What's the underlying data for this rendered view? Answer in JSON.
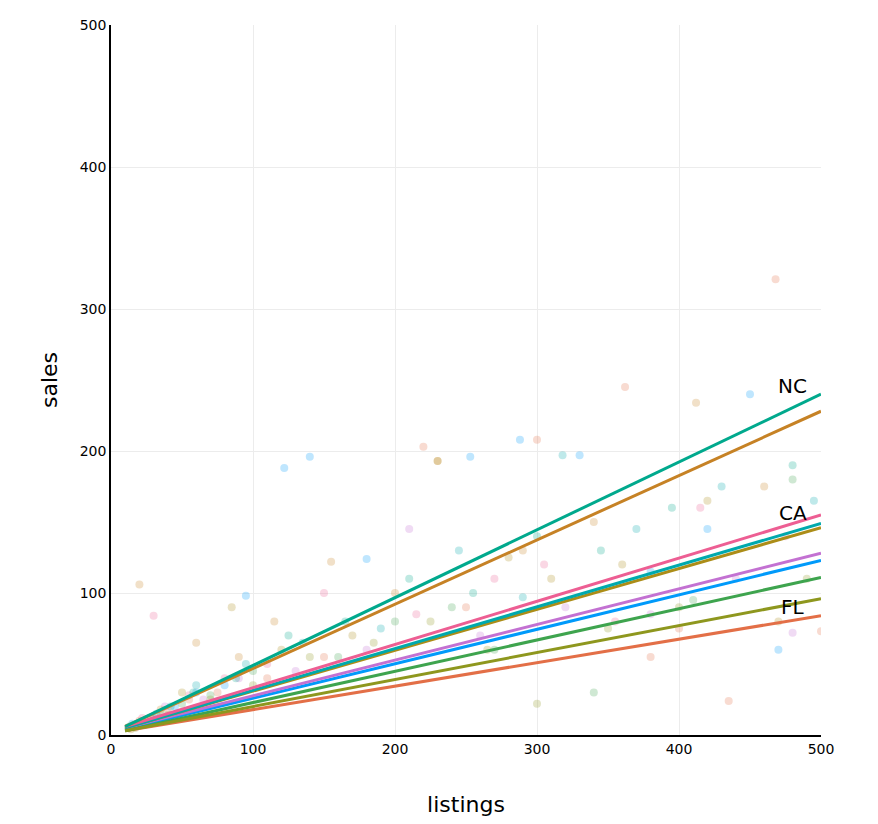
{
  "chart_data": {
    "type": "scatter",
    "xlabel": "listings",
    "ylabel": "sales",
    "xlim": [
      0,
      500
    ],
    "ylim": [
      0,
      500
    ],
    "xticks": [
      0,
      100,
      200,
      300,
      400,
      500
    ],
    "yticks": [
      0,
      100,
      200,
      300,
      400,
      500
    ],
    "grid": true,
    "series": [
      {
        "color": "#009AFA",
        "x": [
          15,
          30,
          45,
          60,
          80,
          95,
          122,
          140,
          180,
          253,
          288,
          330,
          450,
          470,
          380,
          420
        ],
        "y": [
          8,
          12,
          20,
          30,
          35,
          98,
          188,
          196,
          124,
          196,
          208,
          197,
          240,
          60,
          115,
          145
        ],
        "fit": {
          "x": [
            10,
            500
          ],
          "y": [
            4,
            123
          ]
        }
      },
      {
        "color": "#E36F47",
        "x": [
          20,
          40,
          55,
          75,
          110,
          150,
          220,
          300,
          362,
          435,
          468,
          500,
          250,
          380,
          400
        ],
        "y": [
          10,
          18,
          25,
          30,
          40,
          55,
          203,
          208,
          245,
          24,
          321,
          73,
          90,
          55,
          75
        ],
        "fit": {
          "x": [
            10,
            500
          ],
          "y": [
            3,
            84
          ]
        }
      },
      {
        "color": "#3EA44E",
        "x": [
          12,
          35,
          50,
          70,
          100,
          160,
          200,
          240,
          270,
          340,
          410,
          480
        ],
        "y": [
          5,
          15,
          22,
          28,
          45,
          55,
          80,
          90,
          60,
          30,
          95,
          180
        ],
        "fit": {
          "x": [
            10,
            500
          ],
          "y": [
            3,
            111
          ]
        }
      },
      {
        "color": "#C371D2",
        "x": [
          18,
          38,
          65,
          90,
          130,
          180,
          210,
          260,
          320,
          380,
          440,
          480
        ],
        "y": [
          6,
          20,
          25,
          40,
          45,
          60,
          145,
          70,
          90,
          85,
          110,
          72
        ],
        "fit": {
          "x": [
            10,
            500
          ],
          "y": [
            5,
            128
          ]
        }
      },
      {
        "color": "#AC8D18",
        "x": [
          14,
          28,
          50,
          85,
          120,
          170,
          230,
          280,
          310,
          360,
          420,
          470
        ],
        "y": [
          4,
          12,
          30,
          90,
          60,
          70,
          193,
          125,
          110,
          120,
          165,
          80
        ],
        "fit": {
          "x": [
            10,
            500
          ],
          "y": [
            5,
            146
          ]
        }
      },
      {
        "color": "#00A9AD",
        "x": [
          16,
          42,
          60,
          95,
          135,
          190,
          245,
          290,
          318,
          370,
          430,
          495
        ],
        "y": [
          7,
          20,
          35,
          50,
          65,
          75,
          130,
          97,
          197,
          145,
          175,
          165
        ],
        "fit": {
          "x": [
            10,
            500
          ],
          "y": [
            5,
            149
          ]
        }
      },
      {
        "color": "#ED5E93",
        "x": [
          22,
          30,
          55,
          80,
          110,
          150,
          215,
          270,
          305,
          355,
          415,
          475
        ],
        "y": [
          12,
          84,
          28,
          40,
          50,
          100,
          85,
          110,
          120,
          80,
          160,
          140
        ],
        "fit": {
          "x": [
            10,
            500
          ],
          "y": [
            6,
            155
          ]
        }
      },
      {
        "color": "#C68225",
        "x": [
          20,
          35,
          60,
          90,
          115,
          155,
          200,
          230,
          290,
          340,
          412,
          460
        ],
        "y": [
          106,
          18,
          65,
          55,
          80,
          122,
          100,
          193,
          130,
          150,
          234,
          175
        ],
        "fit": {
          "x": [
            10,
            500
          ],
          "y": [
            6,
            228
          ]
        }
      },
      {
        "color": "#00A98D",
        "x": [
          13,
          32,
          58,
          88,
          125,
          165,
          210,
          255,
          300,
          345,
          395,
          480
        ],
        "y": [
          6,
          15,
          30,
          40,
          70,
          80,
          110,
          100,
          140,
          130,
          160,
          190
        ],
        "fit": {
          "x": [
            10,
            500
          ],
          "y": [
            6,
            240
          ]
        }
      },
      {
        "color": "#8E971E",
        "x": [
          17,
          40,
          70,
          100,
          140,
          185,
          225,
          265,
          300,
          350,
          400,
          490
        ],
        "y": [
          5,
          14,
          25,
          35,
          55,
          65,
          80,
          60,
          22,
          75,
          90,
          110
        ],
        "fit": {
          "x": [
            10,
            500
          ],
          "y": [
            3,
            96
          ]
        }
      }
    ],
    "annotations": [
      {
        "text": "NC",
        "x": 480,
        "y": 246
      },
      {
        "text": "CA",
        "x": 480,
        "y": 156
      },
      {
        "text": "FL",
        "x": 480,
        "y": 90
      }
    ]
  }
}
